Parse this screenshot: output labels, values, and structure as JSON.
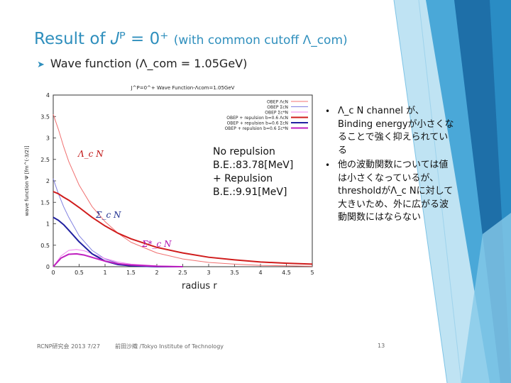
{
  "title": "Result of J^P = 0^+ (with common cutoff Λ_com)",
  "title_main": "Result of 𝐽ᴾ = 0⁺",
  "title_cutoff": "(with common cutoff Λ_com)",
  "bullet": "Wave function (Λ_com = 1.05GeV)",
  "annotations": {
    "lambda_n": "Λ_c N",
    "sigma_n": "Σ_c N",
    "sigma_star_n": "Σ*_c N",
    "no_repulsion": "No repulsion",
    "be_1": "B.E.:83.78[MeV]",
    "plus_repulsion": "+ Repulsion",
    "be_2": "B.E.:9.91[MeV]",
    "radius": "radius r"
  },
  "notes": [
    "Λ_c N channel が、Binding energyが小さくなることで強く抑えられている",
    "他の波動関数については値は小さくなっているが、thresholdがΛ_c Nに対して大きいため、外に広がる波動関数にはならない"
  ],
  "footer": {
    "left": "RCNP研究会 2013 7/27",
    "center": "前田沙織 /Tokyo Institute of Technology",
    "page": "13"
  },
  "colors": {
    "title": "#2f8fbd",
    "lambda": "#d01c1c",
    "sigma": "#2020a0",
    "sigma_star": "#c020c0"
  },
  "chart_data": {
    "type": "line",
    "title": "J^P=0^+ Wave Function-Λcom=1.05GeV",
    "xlabel": "",
    "ylabel": "wave function Ψ [fm^(-3/2)]",
    "xlim": [
      0,
      5
    ],
    "ylim": [
      0,
      4
    ],
    "x_ticks": [
      0,
      0.5,
      1,
      1.5,
      2,
      2.5,
      3,
      3.5,
      4,
      4.5,
      5
    ],
    "y_ticks": [
      0,
      0.5,
      1,
      1.5,
      2,
      2.5,
      3,
      3.5,
      4
    ],
    "legend_position": "top-right",
    "series": [
      {
        "name": "OBEP ΛcN",
        "color": "#f07070",
        "width": 1,
        "x": [
          0,
          0.1,
          0.2,
          0.3,
          0.5,
          0.75,
          1,
          1.25,
          1.5,
          2,
          2.5,
          3,
          3.5,
          4,
          5
        ],
        "y": [
          3.55,
          3.2,
          2.8,
          2.45,
          1.9,
          1.4,
          1.05,
          0.78,
          0.57,
          0.32,
          0.18,
          0.1,
          0.06,
          0.03,
          0.01
        ]
      },
      {
        "name": "OBEP ΣcN",
        "color": "#8080e0",
        "width": 1,
        "x": [
          0,
          0.1,
          0.2,
          0.3,
          0.5,
          0.75,
          1,
          1.25,
          1.5,
          2,
          2.5
        ],
        "y": [
          2.05,
          1.7,
          1.4,
          1.15,
          0.72,
          0.38,
          0.18,
          0.08,
          0.03,
          0.01,
          0
        ]
      },
      {
        "name": "OBEP Σc*N",
        "color": "#f080f0",
        "width": 1,
        "x": [
          0,
          0.15,
          0.3,
          0.45,
          0.6,
          0.8,
          1,
          1.25,
          1.5,
          2,
          2.5
        ],
        "y": [
          0,
          0.25,
          0.38,
          0.4,
          0.37,
          0.28,
          0.19,
          0.11,
          0.06,
          0.02,
          0
        ]
      },
      {
        "name": "OBEP + repulsion b=0.6 ΛcN",
        "color": "#d01c1c",
        "width": 2,
        "x": [
          0,
          0.1,
          0.2,
          0.3,
          0.5,
          0.75,
          1,
          1.25,
          1.5,
          2,
          2.5,
          3,
          3.5,
          4,
          4.5,
          5
        ],
        "y": [
          1.75,
          1.7,
          1.62,
          1.55,
          1.38,
          1.15,
          0.95,
          0.78,
          0.65,
          0.45,
          0.32,
          0.22,
          0.16,
          0.11,
          0.08,
          0.06
        ]
      },
      {
        "name": "OBEP + repulsion b=0.6 ΣcN",
        "color": "#2020a0",
        "width": 2,
        "x": [
          0,
          0.1,
          0.2,
          0.3,
          0.5,
          0.75,
          1,
          1.25,
          1.5,
          2,
          2.5
        ],
        "y": [
          1.15,
          1.08,
          0.98,
          0.85,
          0.58,
          0.3,
          0.13,
          0.05,
          0.02,
          0,
          0
        ]
      },
      {
        "name": "OBEP + repulsion b=0.6 Σc*N",
        "color": "#c020c0",
        "width": 2,
        "x": [
          0,
          0.15,
          0.3,
          0.45,
          0.6,
          0.8,
          1,
          1.25,
          1.5,
          2,
          2.5
        ],
        "y": [
          0,
          0.2,
          0.29,
          0.3,
          0.27,
          0.2,
          0.13,
          0.07,
          0.04,
          0.01,
          0
        ]
      }
    ]
  }
}
